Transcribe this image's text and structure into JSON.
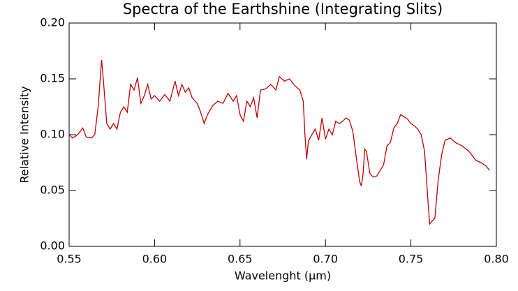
{
  "chart_data": {
    "type": "line",
    "title": "Spectra of the Earthshine (Integrating Slits)",
    "xlabel": "Wavelenght (µm)",
    "ylabel": "Relative Intensity",
    "xlim": [
      0.55,
      0.8
    ],
    "ylim": [
      0,
      0.2
    ],
    "xticks": [
      0.55,
      {
        "value": 0.6,
        "label": "0.60"
      },
      0.65,
      {
        "value": 0.7,
        "label": "0.70"
      },
      0.75,
      {
        "value": 0.8,
        "label": "0.80"
      }
    ],
    "yticks": [
      {
        "value": 0,
        "label": "0.00"
      },
      0.05,
      {
        "value": 0.1,
        "label": "0.10"
      },
      0.15,
      {
        "value": 0.2,
        "label": "0.20"
      }
    ],
    "x": [
      0.55,
      0.552,
      0.555,
      0.558,
      0.56,
      0.563,
      0.565,
      0.567,
      0.569,
      0.57,
      0.572,
      0.574,
      0.576,
      0.578,
      0.58,
      0.582,
      0.584,
      0.586,
      0.588,
      0.59,
      0.592,
      0.594,
      0.596,
      0.598,
      0.6,
      0.603,
      0.606,
      0.609,
      0.612,
      0.614,
      0.616,
      0.618,
      0.62,
      0.622,
      0.625,
      0.627,
      0.629,
      0.631,
      0.634,
      0.637,
      0.64,
      0.643,
      0.646,
      0.648,
      0.65,
      0.652,
      0.654,
      0.656,
      0.658,
      0.66,
      0.662,
      0.665,
      0.668,
      0.671,
      0.673,
      0.676,
      0.679,
      0.682,
      0.685,
      0.687,
      0.688,
      0.689,
      0.69,
      0.692,
      0.694,
      0.696,
      0.698,
      0.7,
      0.702,
      0.704,
      0.706,
      0.708,
      0.71,
      0.712,
      0.714,
      0.716,
      0.718,
      0.72,
      0.721,
      0.722,
      0.723,
      0.724,
      0.726,
      0.728,
      0.73,
      0.732,
      0.734,
      0.736,
      0.738,
      0.74,
      0.742,
      0.744,
      0.746,
      0.748,
      0.75,
      0.752,
      0.754,
      0.756,
      0.758,
      0.76,
      0.761,
      0.762,
      0.764,
      0.766,
      0.768,
      0.77,
      0.773,
      0.776,
      0.78,
      0.784,
      0.788,
      0.791,
      0.794,
      0.796
    ],
    "series": [
      {
        "name": "Earthshine",
        "color": "#c00000",
        "values": [
          0.1,
          0.097,
          0.1,
          0.106,
          0.098,
          0.097,
          0.1,
          0.125,
          0.167,
          0.15,
          0.11,
          0.105,
          0.11,
          0.105,
          0.12,
          0.125,
          0.12,
          0.145,
          0.14,
          0.151,
          0.128,
          0.135,
          0.145,
          0.132,
          0.135,
          0.13,
          0.136,
          0.13,
          0.148,
          0.135,
          0.145,
          0.138,
          0.142,
          0.133,
          0.128,
          0.12,
          0.11,
          0.118,
          0.126,
          0.13,
          0.128,
          0.137,
          0.13,
          0.135,
          0.118,
          0.112,
          0.13,
          0.125,
          0.133,
          0.115,
          0.14,
          0.141,
          0.145,
          0.14,
          0.152,
          0.148,
          0.15,
          0.144,
          0.14,
          0.13,
          0.1,
          0.078,
          0.094,
          0.1,
          0.105,
          0.095,
          0.115,
          0.096,
          0.105,
          0.1,
          0.112,
          0.11,
          0.112,
          0.115,
          0.113,
          0.103,
          0.08,
          0.058,
          0.054,
          0.065,
          0.087,
          0.085,
          0.065,
          0.062,
          0.063,
          0.068,
          0.073,
          0.09,
          0.093,
          0.106,
          0.11,
          0.118,
          0.116,
          0.114,
          0.11,
          0.108,
          0.105,
          0.1,
          0.085,
          0.04,
          0.02,
          0.022,
          0.025,
          0.06,
          0.082,
          0.095,
          0.097,
          0.093,
          0.09,
          0.085,
          0.077,
          0.075,
          0.072,
          0.068
        ]
      }
    ]
  }
}
